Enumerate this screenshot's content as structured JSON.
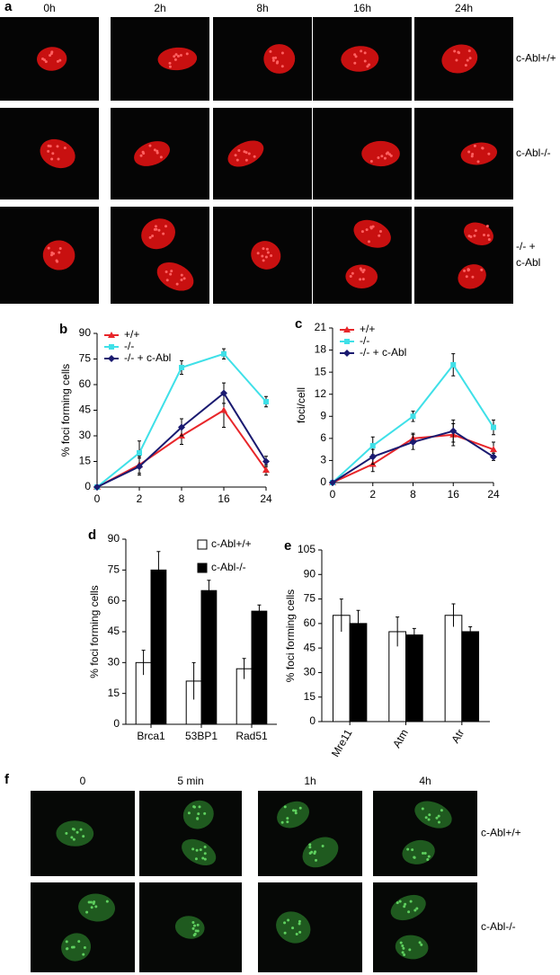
{
  "panel_a": {
    "label": "a",
    "columns": [
      "0h",
      "2h",
      "8h",
      "16h",
      "24h"
    ],
    "rows": [
      [
        "c-Abl+/+"
      ],
      [
        "c-Abl-/-"
      ],
      [
        "-/- +",
        "c-Abl"
      ]
    ]
  },
  "panel_f": {
    "label": "f",
    "columns": [
      "0",
      "5 min",
      "1h",
      "4h"
    ],
    "rows": [
      [
        "c-Abl+/+"
      ],
      [
        "c-Abl-/-"
      ]
    ]
  },
  "chart_data": [
    {
      "type": "line",
      "label": "b",
      "y_label": "% foci forming cells",
      "categories": [
        "0",
        "2",
        "8",
        "16",
        "24"
      ],
      "ylim": [
        0,
        90
      ],
      "yticks": [
        0,
        15,
        30,
        45,
        60,
        75,
        90
      ],
      "legend": "top-left",
      "series": [
        {
          "name": "+/+",
          "color": "#e8262a",
          "marker": "triangle",
          "values": [
            0,
            13,
            30,
            45,
            10
          ],
          "errors": [
            0,
            5,
            5,
            10,
            3
          ]
        },
        {
          "name": "-/-",
          "color": "#3fe0e8",
          "marker": "square",
          "values": [
            0,
            20,
            70,
            78,
            50
          ],
          "errors": [
            0,
            7,
            4,
            3,
            3
          ]
        },
        {
          "name": "-/- + c-Abl",
          "color": "#1a1a70",
          "marker": "diamond",
          "values": [
            0,
            12,
            35,
            55,
            15
          ],
          "errors": [
            0,
            5,
            5,
            6,
            3
          ]
        }
      ]
    },
    {
      "type": "line",
      "label": "c",
      "y_label": "foci/cell",
      "categories": [
        "0",
        "2",
        "8",
        "16",
        "24"
      ],
      "ylim": [
        0,
        21
      ],
      "yticks": [
        0,
        3,
        6,
        9,
        12,
        15,
        18,
        21
      ],
      "legend": "top-left",
      "series": [
        {
          "name": "+/+",
          "color": "#e8262a",
          "marker": "triangle",
          "values": [
            0,
            2.5,
            6,
            6.5,
            4.5
          ],
          "errors": [
            0,
            1,
            0.7,
            1.5,
            1
          ]
        },
        {
          "name": "-/-",
          "color": "#3fe0e8",
          "marker": "square",
          "values": [
            0,
            5,
            9,
            16,
            7.5
          ],
          "errors": [
            0,
            1.2,
            0.7,
            1.5,
            1
          ]
        },
        {
          "name": "-/- + c-Abl",
          "color": "#1a1a70",
          "marker": "diamond",
          "values": [
            0,
            3.5,
            5.5,
            7,
            3.5
          ],
          "errors": [
            0,
            1,
            1,
            1.5,
            0.5
          ]
        }
      ]
    },
    {
      "type": "bar",
      "label": "d",
      "y_label": "% foci forming cells",
      "categories": [
        "Brca1",
        "53BP1",
        "Rad51"
      ],
      "ylim": [
        0,
        90
      ],
      "yticks": [
        0,
        15,
        30,
        45,
        60,
        75,
        90
      ],
      "legend": "top-right",
      "series": [
        {
          "name": "c-Abl+/+",
          "color": "#ffffff",
          "values": [
            30,
            21,
            27
          ],
          "errors": [
            6,
            9,
            5
          ]
        },
        {
          "name": "c-Abl-/-",
          "color": "#000000",
          "values": [
            75,
            65,
            55
          ],
          "errors": [
            9,
            5,
            3
          ]
        }
      ]
    },
    {
      "type": "bar",
      "label": "e",
      "y_label": "% foci forming cells",
      "categories": [
        "Mre11",
        "Atm",
        "Atr"
      ],
      "xlabel_rotation": -60,
      "ylim": [
        0,
        105
      ],
      "yticks": [
        0,
        15,
        30,
        45,
        60,
        75,
        90,
        105
      ],
      "series": [
        {
          "color": "#ffffff",
          "values": [
            65,
            55,
            65
          ],
          "errors": [
            10,
            9,
            7
          ]
        },
        {
          "color": "#000000",
          "values": [
            60,
            53,
            55
          ],
          "errors": [
            8,
            4,
            3
          ]
        }
      ]
    }
  ]
}
